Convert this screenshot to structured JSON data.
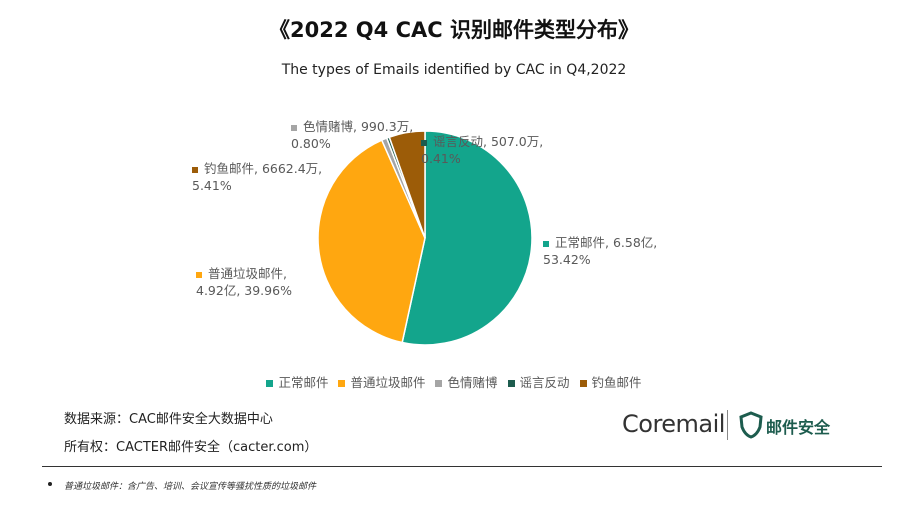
{
  "title": "《2022 Q4 CAC 识别邮件类型分布》",
  "chart_data": {
    "type": "pie",
    "subtitle": "The types of Emails  identified by CAC in Q4,2022",
    "categories": [
      "正常邮件",
      "普通垃圾邮件",
      "色情赌博",
      "谣言反动",
      "钓鱼邮件"
    ],
    "values": [
      53.42,
      39.96,
      0.8,
      0.41,
      5.41
    ],
    "value_labels": [
      "正常邮件, 6.58亿, 53.42%",
      "普通垃圾邮件, 4.92亿, 39.96%",
      "色情赌博, 990.3万, 0.80%",
      "谣言反动, 507.0万, 0.41%",
      "钓鱼邮件, 6662.4万, 5.41%"
    ],
    "colors": [
      "#13a58c",
      "#ffa710",
      "#a5a5a5",
      "#1d5c4e",
      "#9c5c08"
    ],
    "legend": "bottom"
  },
  "source": "数据来源：CAC邮件安全大数据中心",
  "owner": "所有权：CACTER邮件安全（cacter.com）",
  "logo": {
    "brand": "Coremail",
    "product": "邮件安全"
  },
  "footnote": "普通垃圾邮件：含广告、培训、会议宣传等骚扰性质的垃圾邮件"
}
